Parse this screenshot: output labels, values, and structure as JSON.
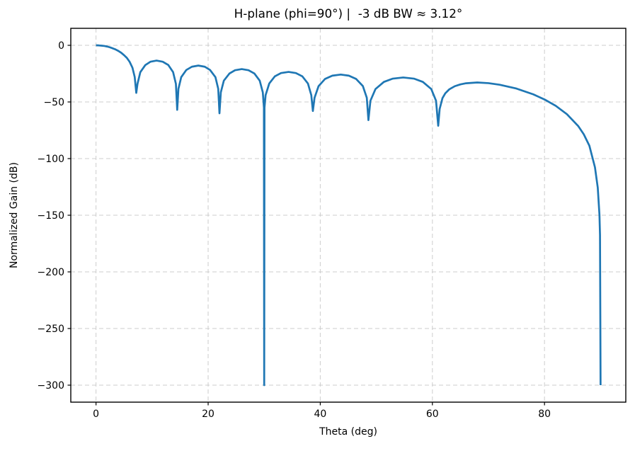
{
  "figure": {
    "background": "#ffffff"
  },
  "chart_data": {
    "type": "line",
    "title": "H-plane (phi=90°) |  -3 dB BW ≈ 3.12°",
    "xlabel": "Theta (deg)",
    "ylabel": "Normalized Gain (dB)",
    "xlim": [
      -4.5,
      94.5
    ],
    "ylim": [
      -315,
      15
    ],
    "xticks": {
      "values": [
        0,
        20,
        40,
        60,
        80
      ],
      "labels": [
        "0",
        "20",
        "40",
        "60",
        "80"
      ]
    },
    "yticks": {
      "values": [
        0,
        -50,
        -100,
        -150,
        -200,
        -250,
        -300
      ],
      "labels": [
        "0",
        "−50",
        "−100",
        "−150",
        "−200",
        "−250",
        "−300"
      ]
    },
    "grid": {
      "on": true,
      "color": "#cdcdcd",
      "style": "dashed"
    },
    "line": {
      "color": "#1f77b4",
      "width": 2.7
    },
    "floor_db": -300,
    "legend": null,
    "series": [
      {
        "name": "H-plane normalized gain",
        "x": [
          0,
          0.5,
          1,
          1.5,
          2,
          2.5,
          3,
          3.5,
          4,
          4.5,
          5,
          5.5,
          6,
          6.5,
          6.9,
          7.18,
          7.4,
          7.9,
          8.8,
          9.7,
          10.8,
          11.9,
          12.9,
          13.75,
          14.25,
          14.48,
          14.7,
          15.2,
          16.1,
          17.1,
          18.25,
          19.4,
          20.35,
          21.3,
          21.8,
          22.02,
          22.26,
          22.8,
          23.8,
          24.8,
          26,
          27.2,
          28.25,
          29.2,
          29.75,
          29.95,
          30,
          30.05,
          30.25,
          30.9,
          31.9,
          33,
          34.35,
          35.65,
          36.8,
          37.8,
          38.4,
          38.68,
          38.98,
          39.7,
          40.85,
          42.15,
          43.65,
          45.1,
          46.4,
          47.6,
          48.3,
          48.59,
          48.95,
          49.85,
          51.35,
          52.95,
          54.8,
          56.7,
          58.3,
          59.8,
          60.65,
          61.04,
          61.3,
          61.8,
          62.3,
          63,
          64,
          65,
          66,
          68,
          70,
          72,
          75,
          78,
          80,
          82,
          84,
          86,
          87,
          88,
          89,
          89.5,
          89.8,
          89.9,
          90
        ],
        "y": [
          0,
          -0.1,
          -0.3,
          -0.6,
          -1.1,
          -1.8,
          -2.7,
          -3.7,
          -5,
          -6.6,
          -8.7,
          -11.1,
          -14.6,
          -19.8,
          -27.9,
          -42,
          -34,
          -23.7,
          -17.4,
          -14.5,
          -13.5,
          -14.5,
          -17.4,
          -23.7,
          -34,
          -57,
          -38.4,
          -28.1,
          -21.8,
          -18.9,
          -17.9,
          -18.9,
          -21.8,
          -28.1,
          -38.4,
          -60,
          -41.5,
          -31.2,
          -24.9,
          -22,
          -21,
          -22,
          -24.9,
          -31.2,
          -41.5,
          -55,
          -300,
          -55,
          -44,
          -33.7,
          -27.4,
          -24.5,
          -23.5,
          -24.5,
          -27.4,
          -33.7,
          -44,
          -58,
          -46.3,
          -36,
          -29.7,
          -26.8,
          -25.8,
          -26.8,
          -29.7,
          -36,
          -46.3,
          -66,
          -48.9,
          -38.6,
          -32.3,
          -29.4,
          -28.4,
          -29.4,
          -32.3,
          -38.6,
          -48.9,
          -71,
          -56.1,
          -46.6,
          -42.4,
          -38.9,
          -36.1,
          -34.5,
          -33.5,
          -32.8,
          -33.4,
          -34.8,
          -38.2,
          -43.3,
          -47.8,
          -53.4,
          -60.8,
          -71.2,
          -78.5,
          -88.6,
          -107.7,
          -125.7,
          -149.5,
          -167.5,
          -300
        ]
      }
    ]
  }
}
